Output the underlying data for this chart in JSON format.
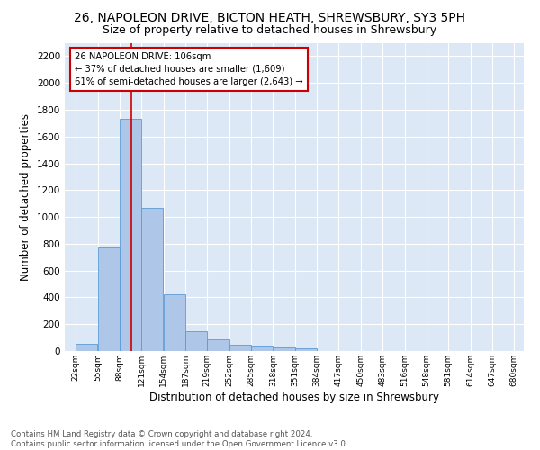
{
  "title1": "26, NAPOLEON DRIVE, BICTON HEATH, SHREWSBURY, SY3 5PH",
  "title2": "Size of property relative to detached houses in Shrewsbury",
  "xlabel": "Distribution of detached houses by size in Shrewsbury",
  "ylabel": "Number of detached properties",
  "bar_values": [
    55,
    770,
    1730,
    1065,
    420,
    150,
    85,
    45,
    38,
    28,
    20,
    0,
    0,
    0,
    0,
    0,
    0,
    0,
    0,
    0
  ],
  "bin_labels": [
    "22sqm",
    "55sqm",
    "88sqm",
    "121sqm",
    "154sqm",
    "187sqm",
    "219sqm",
    "252sqm",
    "285sqm",
    "318sqm",
    "351sqm",
    "384sqm",
    "417sqm",
    "450sqm",
    "483sqm",
    "516sqm",
    "548sqm",
    "581sqm",
    "614sqm",
    "647sqm",
    "680sqm"
  ],
  "bar_color": "#aec6e8",
  "bar_edge_color": "#5b9bd5",
  "vline_x": 106,
  "vline_color": "#cc0000",
  "annotation_text": "26 NAPOLEON DRIVE: 106sqm\n← 37% of detached houses are smaller (1,609)\n61% of semi-detached houses are larger (2,643) →",
  "annotation_box_color": "#ffffff",
  "annotation_box_edge": "#cc0000",
  "ylim": [
    0,
    2300
  ],
  "yticks": [
    0,
    200,
    400,
    600,
    800,
    1000,
    1200,
    1400,
    1600,
    1800,
    2000,
    2200
  ],
  "background_color": "#dce8f5",
  "footer_text": "Contains HM Land Registry data © Crown copyright and database right 2024.\nContains public sector information licensed under the Open Government Licence v3.0.",
  "title1_fontsize": 10,
  "title2_fontsize": 9,
  "xlabel_fontsize": 8.5,
  "ylabel_fontsize": 8.5,
  "footer_fontsize": 6.2
}
